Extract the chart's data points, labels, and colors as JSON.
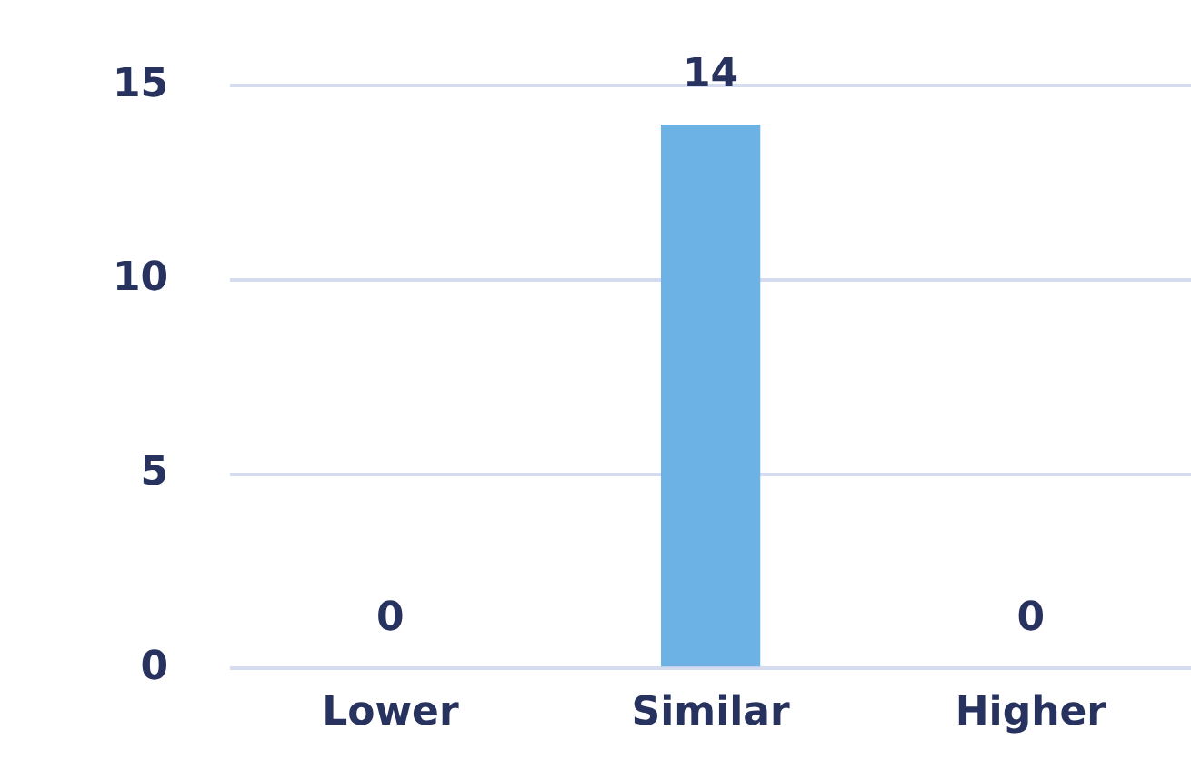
{
  "chart_data": {
    "type": "bar",
    "categories": [
      "Lower",
      "Similar",
      "Higher"
    ],
    "values": [
      0,
      14,
      0
    ],
    "color": "#6cb2e4",
    "ylim": [
      0,
      15
    ],
    "yticks": [
      0,
      5,
      10,
      15
    ],
    "grid": "y",
    "data_labels": true,
    "legend": false
  }
}
